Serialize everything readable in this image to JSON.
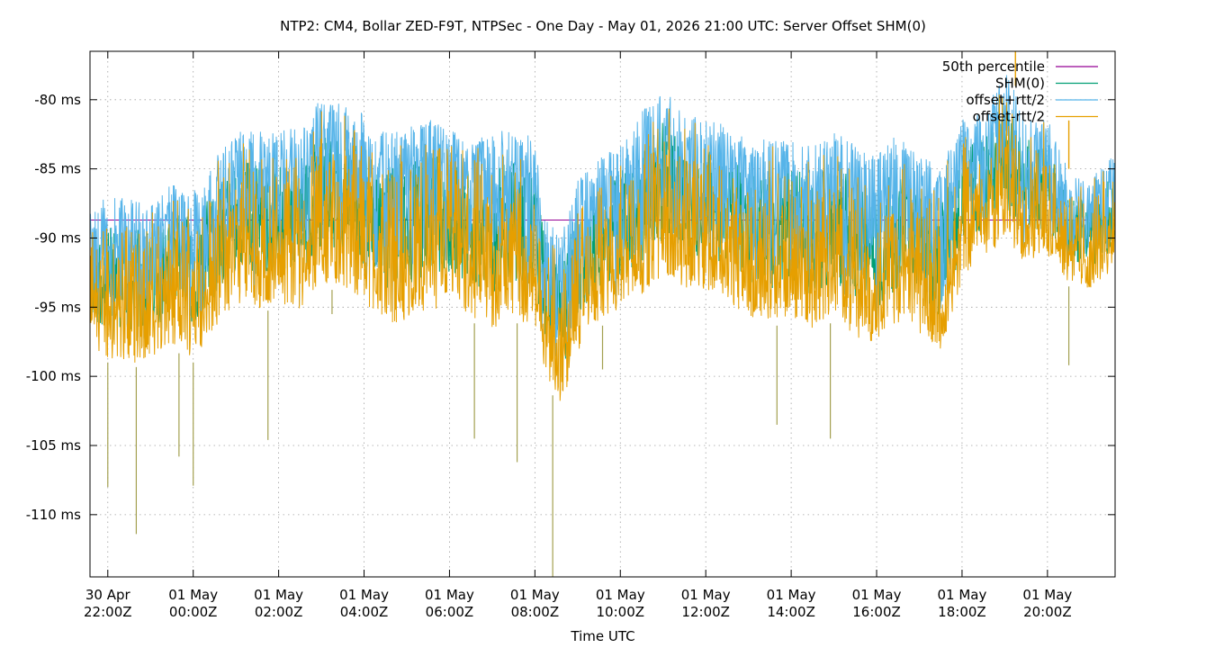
{
  "chart_data": {
    "type": "line",
    "title": "NTP2: CM4, Bollar ZED-F9T, NTPSec - One Day - May 01, 2026 21:00 UTC: Server Offset SHM(0)",
    "xlabel": "Time UTC",
    "ylabel": "",
    "y_unit": "ms",
    "ylim": [
      -114.5,
      -76.5
    ],
    "y_ticks": [
      {
        "value": -80,
        "label": "-80 ms"
      },
      {
        "value": -85,
        "label": "-85 ms"
      },
      {
        "value": -90,
        "label": "-90 ms"
      },
      {
        "value": -95,
        "label": "-95 ms"
      },
      {
        "value": -100,
        "label": "-100 ms"
      },
      {
        "value": -105,
        "label": "-105 ms"
      },
      {
        "value": -110,
        "label": "-110 ms"
      }
    ],
    "xlim_hours_utc": [
      "2026-04-30 21:35Z",
      "2026-05-01 21:35Z"
    ],
    "x_ticks": [
      {
        "time": "2026-04-30 22:00Z",
        "line1": "30 Apr",
        "line2": "22:00Z"
      },
      {
        "time": "2026-05-01 00:00Z",
        "line1": "01 May",
        "line2": "00:00Z"
      },
      {
        "time": "2026-05-01 02:00Z",
        "line1": "01 May",
        "line2": "02:00Z"
      },
      {
        "time": "2026-05-01 04:00Z",
        "line1": "01 May",
        "line2": "04:00Z"
      },
      {
        "time": "2026-05-01 06:00Z",
        "line1": "01 May",
        "line2": "06:00Z"
      },
      {
        "time": "2026-05-01 08:00Z",
        "line1": "01 May",
        "line2": "08:00Z"
      },
      {
        "time": "2026-05-01 10:00Z",
        "line1": "01 May",
        "line2": "10:00Z"
      },
      {
        "time": "2026-05-01 12:00Z",
        "line1": "01 May",
        "line2": "12:00Z"
      },
      {
        "time": "2026-05-01 14:00Z",
        "line1": "01 May",
        "line2": "14:00Z"
      },
      {
        "time": "2026-05-01 16:00Z",
        "line1": "01 May",
        "line2": "16:00Z"
      },
      {
        "time": "2026-05-01 18:00Z",
        "line1": "01 May",
        "line2": "18:00Z"
      },
      {
        "time": "2026-05-01 20:00Z",
        "line1": "01 May",
        "line2": "20:00Z"
      }
    ],
    "grid": true,
    "legend_position": "top-right",
    "series": [
      {
        "name": "50th percentile",
        "color": "#940094",
        "kind": "constant",
        "value": -88.7
      },
      {
        "name": "SHM(0)",
        "color": "#009e73",
        "kind": "offset"
      },
      {
        "name": "offset+rtt/2",
        "color": "#56b4e9",
        "kind": "band-upper"
      },
      {
        "name": "offset-rtt/2",
        "color": "#e69f00",
        "kind": "band-lower"
      }
    ],
    "envelope": {
      "x": [
        "2026-04-30 21:35Z",
        "2026-04-30 22:00Z",
        "2026-04-30 22:30Z",
        "2026-04-30 23:00Z",
        "2026-04-30 23:30Z",
        "2026-05-01 00:00Z",
        "2026-05-01 00:30Z",
        "2026-05-01 01:00Z",
        "2026-05-01 01:30Z",
        "2026-05-01 02:00Z",
        "2026-05-01 02:30Z",
        "2026-05-01 03:00Z",
        "2026-05-01 03:30Z",
        "2026-05-01 04:00Z",
        "2026-05-01 04:30Z",
        "2026-05-01 05:00Z",
        "2026-05-01 05:30Z",
        "2026-05-01 06:00Z",
        "2026-05-01 06:30Z",
        "2026-05-01 07:00Z",
        "2026-05-01 07:30Z",
        "2026-05-01 08:00Z",
        "2026-05-01 08:20Z",
        "2026-05-01 08:40Z",
        "2026-05-01 09:00Z",
        "2026-05-01 09:30Z",
        "2026-05-01 10:00Z",
        "2026-05-01 10:30Z",
        "2026-05-01 11:00Z",
        "2026-05-01 11:30Z",
        "2026-05-01 12:00Z",
        "2026-05-01 12:30Z",
        "2026-05-01 13:00Z",
        "2026-05-01 13:30Z",
        "2026-05-01 14:00Z",
        "2026-05-01 14:30Z",
        "2026-05-01 15:00Z",
        "2026-05-01 15:30Z",
        "2026-05-01 16:00Z",
        "2026-05-01 16:30Z",
        "2026-05-01 17:00Z",
        "2026-05-01 17:30Z",
        "2026-05-01 18:00Z",
        "2026-05-01 18:30Z",
        "2026-05-01 19:00Z",
        "2026-05-01 19:30Z",
        "2026-05-01 20:00Z",
        "2026-05-01 20:30Z",
        "2026-05-01 21:00Z",
        "2026-05-01 21:35Z"
      ],
      "high": [
        -88.0,
        -86.5,
        -86.8,
        -87.0,
        -85.8,
        -85.5,
        -84.0,
        -81.5,
        -81.5,
        -82.0,
        -81.5,
        -79.5,
        -79.8,
        -80.5,
        -82.0,
        -81.5,
        -81.0,
        -81.5,
        -82.5,
        -82.0,
        -81.5,
        -82.5,
        -89.0,
        -88.5,
        -85.5,
        -84.0,
        -82.5,
        -80.5,
        -78.5,
        -81.0,
        -80.5,
        -81.5,
        -82.5,
        -82.5,
        -82.0,
        -83.0,
        -81.5,
        -83.0,
        -83.5,
        -82.0,
        -83.5,
        -84.5,
        -81.0,
        -80.5,
        -77.5,
        -80.5,
        -81.0,
        -85.0,
        -85.5,
        -83.5
      ],
      "low": [
        -98.0,
        -99.0,
        -99.5,
        -99.0,
        -98.0,
        -99.0,
        -97.0,
        -95.0,
        -95.5,
        -95.0,
        -95.5,
        -93.5,
        -94.0,
        -95.0,
        -96.5,
        -96.5,
        -95.5,
        -95.5,
        -96.0,
        -97.0,
        -96.0,
        -97.0,
        -101.0,
        -102.5,
        -98.5,
        -96.5,
        -95.5,
        -94.5,
        -93.0,
        -94.0,
        -94.0,
        -95.0,
        -96.0,
        -96.5,
        -96.0,
        -97.0,
        -96.0,
        -97.5,
        -98.0,
        -96.5,
        -97.5,
        -98.5,
        -93.5,
        -91.5,
        -91.0,
        -92.0,
        -91.5,
        -93.5,
        -94.0,
        -92.5
      ],
      "spikes": [
        {
          "time": "2026-04-30 22:00Z",
          "low": -108.0
        },
        {
          "time": "2026-04-30 22:40Z",
          "low": -111.4
        },
        {
          "time": "2026-04-30 23:40Z",
          "low": -105.8
        },
        {
          "time": "2026-05-01 00:00Z",
          "low": -107.9
        },
        {
          "time": "2026-05-01 01:45Z",
          "low": -104.6
        },
        {
          "time": "2026-05-01 03:15Z",
          "low": -95.5
        },
        {
          "time": "2026-05-01 06:35Z",
          "low": -104.5
        },
        {
          "time": "2026-05-01 07:35Z",
          "low": -106.2
        },
        {
          "time": "2026-05-01 08:25Z",
          "low": -114.5
        },
        {
          "time": "2026-05-01 09:35Z",
          "low": -99.5
        },
        {
          "time": "2026-05-01 13:40Z",
          "low": -103.5
        },
        {
          "time": "2026-05-01 14:55Z",
          "low": -104.5
        },
        {
          "time": "2026-05-01 19:15Z",
          "high": -76.5
        },
        {
          "time": "2026-05-01 20:30Z",
          "low": -99.2
        },
        {
          "time": "2026-05-01 20:30Z",
          "high": -81.5
        }
      ]
    }
  }
}
